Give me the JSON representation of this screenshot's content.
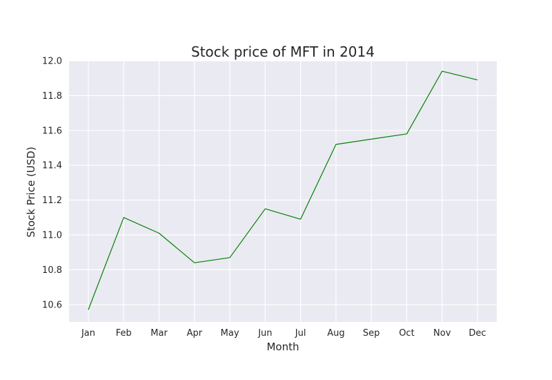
{
  "chart_data": {
    "type": "line",
    "title": "Stock price of MFT in 2014",
    "xlabel": "Month",
    "ylabel": "Stock Price (USD)",
    "categories": [
      "Jan",
      "Feb",
      "Mar",
      "Apr",
      "May",
      "Jun",
      "Jul",
      "Aug",
      "Sep",
      "Oct",
      "Nov",
      "Dec"
    ],
    "values": [
      10.57,
      11.1,
      11.01,
      10.84,
      10.87,
      11.15,
      11.09,
      11.52,
      11.55,
      11.58,
      11.94,
      11.89
    ],
    "ylim": [
      10.5,
      12.0
    ],
    "yticks": [
      "10.6",
      "10.8",
      "11.0",
      "11.2",
      "11.4",
      "11.6",
      "11.8",
      "12.0"
    ],
    "grid": true,
    "line_color": "#008000",
    "plot_background": "#eaeaf2",
    "grid_color": "#ffffff"
  }
}
